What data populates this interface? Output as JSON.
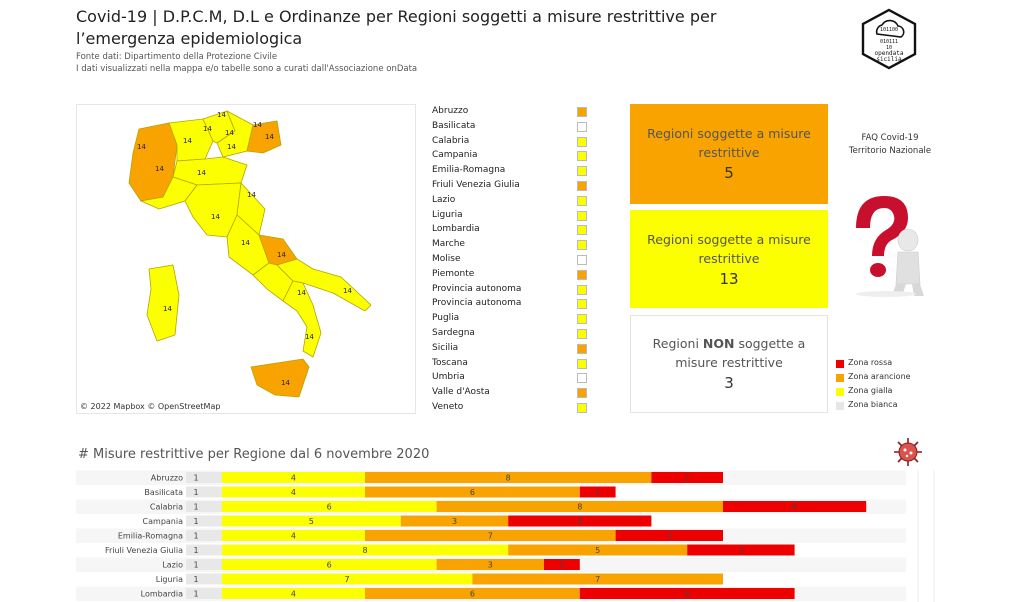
{
  "header": {
    "title": "Covid-19 | D.P.C.M,  D.L e Ordinanze per Regioni soggetti a misure restrittive per l’emergenza epidemiologica",
    "source_line": "Fonte dati: Dipartimento della Protezione Civile",
    "curation_line": "I dati visualizzati nella mappa e/o tabelle sono a curati dall'Associazione onData",
    "logo_text_top": "opendata",
    "logo_text_bottom": "sicilia"
  },
  "map": {
    "credit": "© 2022 Mapbox  © OpenStreetMap",
    "region_label_value": "14"
  },
  "region_legend": [
    {
      "name": "Abruzzo",
      "color": "#f8a300"
    },
    {
      "name": "Basilicata",
      "color": "#ffffff"
    },
    {
      "name": "Calabria",
      "color": "#fbff00"
    },
    {
      "name": "Campania",
      "color": "#fbff00"
    },
    {
      "name": "Emilia-Romagna",
      "color": "#fbff00"
    },
    {
      "name": "Friuli Venezia Giulia",
      "color": "#f8a300"
    },
    {
      "name": "Lazio",
      "color": "#fbff00"
    },
    {
      "name": "Liguria",
      "color": "#fbff00"
    },
    {
      "name": "Lombardia",
      "color": "#fbff00"
    },
    {
      "name": "Marche",
      "color": "#fbff00"
    },
    {
      "name": "Molise",
      "color": "#ffffff"
    },
    {
      "name": "Piemonte",
      "color": "#f8a300"
    },
    {
      "name": "Provincia autonoma",
      "color": "#fbff00"
    },
    {
      "name": "Provincia autonoma",
      "color": "#fbff00"
    },
    {
      "name": "Puglia",
      "color": "#fbff00"
    },
    {
      "name": "Sardegna",
      "color": "#fbff00"
    },
    {
      "name": "Sicilia",
      "color": "#f8a300"
    },
    {
      "name": "Toscana",
      "color": "#fbff00"
    },
    {
      "name": "Umbria",
      "color": "#ffffff"
    },
    {
      "name": "Valle d'Aosta",
      "color": "#f8a300"
    },
    {
      "name": "Veneto",
      "color": "#fbff00"
    }
  ],
  "kpis": {
    "orange": {
      "label": "Regioni soggette a misure restrittive",
      "value": "5"
    },
    "yellow": {
      "label": "Regioni soggette a misure restrittive",
      "value": "13"
    },
    "white": {
      "label_prefix": "Regioni ",
      "label_bold": "NON",
      "label_suffix": " soggette a misure restrittive",
      "value": "3"
    }
  },
  "faq": {
    "line1": "FAQ Covid-19",
    "line2": "Territorio Nazionale"
  },
  "zone_legend": [
    {
      "label": "Zona rossa",
      "color": "#ee0000"
    },
    {
      "label": "Zona arancione",
      "color": "#f8a300"
    },
    {
      "label": "Zona gialla",
      "color": "#fbff00"
    },
    {
      "label": "Zona bianca",
      "color": "#e6e6e6"
    }
  ],
  "colors": {
    "white_zone": "#e8e8e8",
    "yellow_zone": "#fbff00",
    "orange_zone": "#f8a300",
    "red_zone": "#ee0000"
  },
  "chart_data": {
    "type": "bar",
    "title": "# Misure restrittive per Regione dal 6 novembre 2020",
    "orientation": "horizontal",
    "stacked": true,
    "categories": [
      "Abruzzo",
      "Basilicata",
      "Calabria",
      "Campania",
      "Emilia-Romagna",
      "Friuli Venezia Giulia",
      "Lazio",
      "Liguria",
      "Lombardia"
    ],
    "series": [
      {
        "name": "Zona bianca",
        "color": "#e8e8e8",
        "values": [
          1,
          1,
          1,
          1,
          1,
          1,
          1,
          1,
          1
        ]
      },
      {
        "name": "Zona gialla",
        "color": "#fbff00",
        "values": [
          4,
          4,
          6,
          5,
          4,
          8,
          6,
          7,
          4
        ]
      },
      {
        "name": "Zona arancione",
        "color": "#f8a300",
        "values": [
          8,
          6,
          8,
          3,
          7,
          5,
          3,
          7,
          6
        ]
      },
      {
        "name": "Zona rossa",
        "color": "#ee0000",
        "values": [
          2,
          1,
          4,
          4,
          3,
          3,
          1,
          0,
          6
        ]
      }
    ],
    "xlim": [
      0,
      20
    ]
  }
}
